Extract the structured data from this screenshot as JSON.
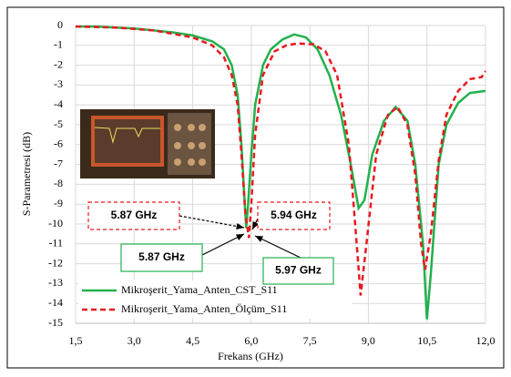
{
  "chart_data": {
    "type": "line",
    "xlabel": "Frekans (GHz)",
    "ylabel": "S-Parametresi (dB)",
    "xlim": [
      1.5,
      12.0
    ],
    "xticks": [
      {
        "value": 1.5,
        "label": "1,5"
      },
      {
        "value": 3.0,
        "label": "3,0"
      },
      {
        "value": 4.5,
        "label": "4,5"
      },
      {
        "value": 6.0,
        "label": "6,0"
      },
      {
        "value": 7.5,
        "label": "7,5"
      },
      {
        "value": 9.0,
        "label": "9,0"
      },
      {
        "value": 10.5,
        "label": "10,5"
      },
      {
        "value": 12.0,
        "label": "12,0"
      }
    ],
    "ylim": [
      -15,
      0
    ],
    "yticks": [
      0,
      -1,
      -2,
      -3,
      -4,
      -5,
      -6,
      -7,
      -8,
      -9,
      -10,
      -11,
      -12,
      -13,
      -14,
      -15
    ],
    "grid": true,
    "legend": "lower left",
    "series": [
      {
        "name": "Mikroşerit_Yama_Anten_CST_S11",
        "color": "#22b14c",
        "dash": false,
        "x": [
          1.5,
          2,
          2.5,
          3,
          3.5,
          4,
          4.5,
          5,
          5.3,
          5.5,
          5.65,
          5.75,
          5.82,
          5.87,
          5.92,
          6.0,
          6.1,
          6.3,
          6.5,
          6.8,
          7.1,
          7.4,
          7.7,
          8.0,
          8.3,
          8.55,
          8.75,
          8.9,
          9.1,
          9.4,
          9.7,
          10.0,
          10.2,
          10.4,
          10.5,
          10.6,
          10.8,
          11.0,
          11.3,
          11.6,
          12.0
        ],
        "values": [
          -0.05,
          -0.05,
          -0.1,
          -0.15,
          -0.25,
          -0.35,
          -0.5,
          -0.8,
          -1.2,
          -2,
          -3.5,
          -6,
          -8.5,
          -10.2,
          -9,
          -6.5,
          -4,
          -2,
          -1.2,
          -0.7,
          -0.45,
          -0.6,
          -1.2,
          -2.5,
          -4.5,
          -7,
          -9.2,
          -8.8,
          -6.5,
          -4.8,
          -4.1,
          -4.8,
          -7,
          -11,
          -14.8,
          -12.5,
          -7,
          -5,
          -3.9,
          -3.4,
          -3.3
        ]
      },
      {
        "name": "Mikroşerit_Yama_Anten_Ölçüm_S11",
        "color": "#e8191e",
        "dash": true,
        "x": [
          1.5,
          2.5,
          3.5,
          4.5,
          5.0,
          5.3,
          5.5,
          5.65,
          5.75,
          5.85,
          5.94,
          6.0,
          6.1,
          6.3,
          6.6,
          6.9,
          7.2,
          7.6,
          7.9,
          8.2,
          8.5,
          8.7,
          8.8,
          8.95,
          9.2,
          9.5,
          9.75,
          10.0,
          10.2,
          10.35,
          10.45,
          10.6,
          10.8,
          11.0,
          11.3,
          11.6,
          11.9,
          12.0
        ],
        "values": [
          -0.05,
          -0.1,
          -0.25,
          -0.6,
          -1.0,
          -1.6,
          -2.5,
          -4,
          -6.5,
          -9.5,
          -10.7,
          -9,
          -5.5,
          -2.5,
          -1.3,
          -1.0,
          -0.9,
          -0.95,
          -1.3,
          -2.5,
          -6,
          -11,
          -13.6,
          -11,
          -6.5,
          -4.5,
          -4.1,
          -5,
          -7.5,
          -11,
          -12.3,
          -10.5,
          -6.8,
          -4.5,
          -3.3,
          -2.7,
          -2.6,
          -2.3
        ]
      }
    ],
    "annotations": [
      {
        "text": "5.87 GHz"
      },
      {
        "text": "5.94 GHz"
      },
      {
        "text": "5.87 GHz"
      },
      {
        "text": "5.97 GHz"
      }
    ]
  }
}
